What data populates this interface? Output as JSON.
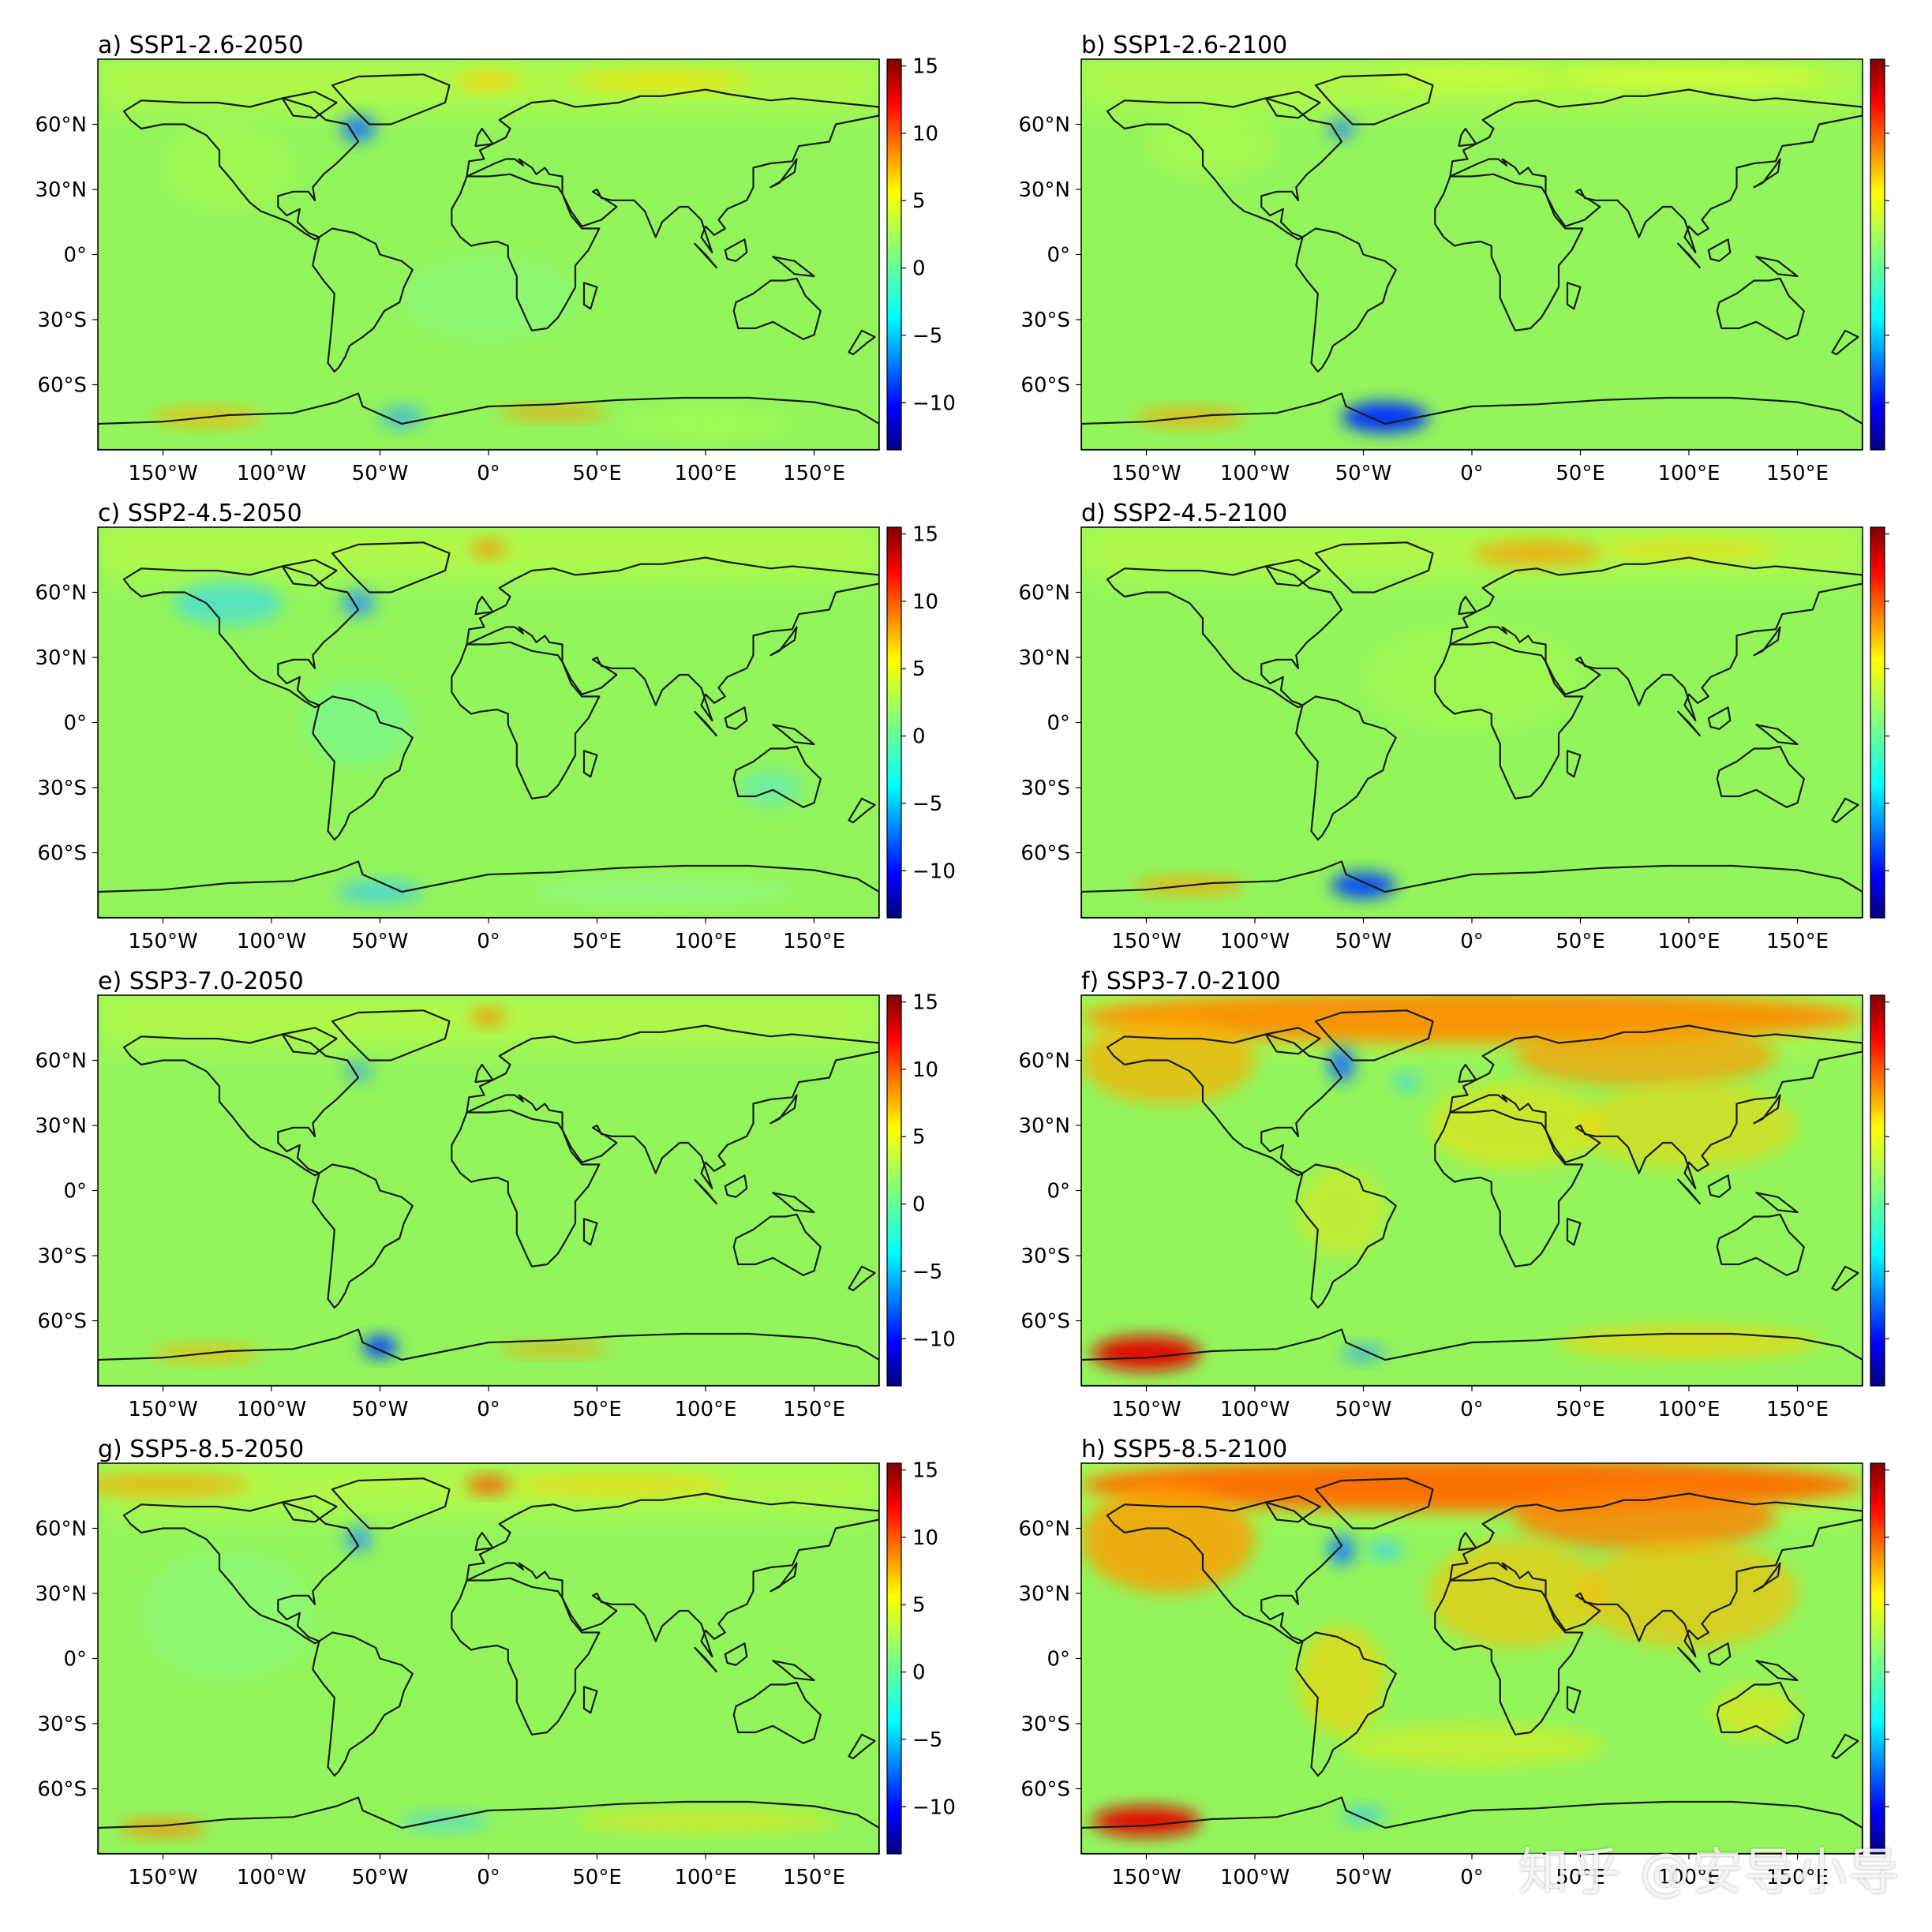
{
  "figure": {
    "panels": [
      {
        "id": "a",
        "title": "a) SSP1-2.6-2050",
        "colorbar_labels": true
      },
      {
        "id": "b",
        "title": "b) SSP1-2.6-2100",
        "colorbar_labels": false
      },
      {
        "id": "c",
        "title": "c) SSP2-4.5-2050",
        "colorbar_labels": true
      },
      {
        "id": "d",
        "title": "d) SSP2-4.5-2100",
        "colorbar_labels": false
      },
      {
        "id": "e",
        "title": "e) SSP3-7.0-2050",
        "colorbar_labels": true
      },
      {
        "id": "f",
        "title": "f) SSP3-7.0-2100",
        "colorbar_labels": false
      },
      {
        "id": "g",
        "title": "g) SSP5-8.5-2050",
        "colorbar_labels": true
      },
      {
        "id": "h",
        "title": "h) SSP5-8.5-2100",
        "colorbar_labels": false
      }
    ],
    "lat_ticks": [
      {
        "value": 60,
        "label": "60°N"
      },
      {
        "value": 30,
        "label": "30°N"
      },
      {
        "value": 0,
        "label": "0°"
      },
      {
        "value": -30,
        "label": "30°S"
      },
      {
        "value": -60,
        "label": "60°S"
      }
    ],
    "lon_ticks": [
      {
        "value": -150,
        "label": "150°W"
      },
      {
        "value": -100,
        "label": "100°W"
      },
      {
        "value": -50,
        "label": "50°W"
      },
      {
        "value": 0,
        "label": "0°"
      },
      {
        "value": 50,
        "label": "50°E"
      },
      {
        "value": 100,
        "label": "100°E"
      },
      {
        "value": 150,
        "label": "150°E"
      }
    ],
    "colorbar": {
      "ticks": [
        {
          "value": 15,
          "label": "15"
        },
        {
          "value": 10,
          "label": "10"
        },
        {
          "value": 5,
          "label": "5"
        },
        {
          "value": 0,
          "label": "0"
        },
        {
          "value": -5,
          "label": "−5"
        },
        {
          "value": -10,
          "label": "−10"
        }
      ],
      "range": [
        -13.5,
        15.5
      ],
      "colormap": "jet",
      "colors": [
        "#00007f",
        "#0000ff",
        "#007fff",
        "#00ffff",
        "#7fff7f",
        "#ffff00",
        "#ff7f00",
        "#ff0000",
        "#7f0000"
      ]
    },
    "map_extent": {
      "lon": [
        -180,
        180
      ],
      "lat": [
        -90,
        90
      ]
    },
    "background_color": "#93f55c",
    "watermark": "知乎 @安导小导"
  }
}
